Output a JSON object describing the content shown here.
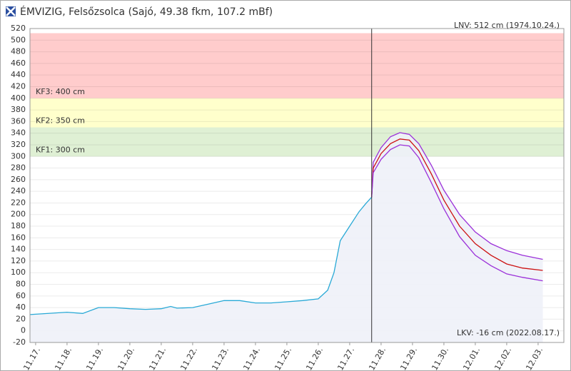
{
  "chart_data": {
    "type": "line",
    "title": "ÉMVIZIG, Felsőzsolca (Sajó, 49.38 fkm, 107.2 mBf)",
    "annotations": {
      "top_right": "LNV: 512 cm (1974.10.24.)",
      "bottom_right": "LKV: -16 cm (2022.08.17.)"
    },
    "bands": [
      {
        "from": 400,
        "to": 512,
        "label": "KF3: 400 cm",
        "color": "#ffcccc"
      },
      {
        "from": 350,
        "to": 400,
        "label": "KF2: 350 cm",
        "color": "#ffffcc"
      },
      {
        "from": 300,
        "to": 350,
        "label": "KF1: 300 cm",
        "color": "#dff0d4"
      }
    ],
    "now_x": 10.7,
    "xlim": [
      -0.18,
      16.82
    ],
    "xticks": [
      {
        "value": 0,
        "label": "11.17."
      },
      {
        "value": 1,
        "label": "11.18."
      },
      {
        "value": 2,
        "label": "11.19."
      },
      {
        "value": 3,
        "label": "11.20."
      },
      {
        "value": 4,
        "label": "11.21."
      },
      {
        "value": 5,
        "label": "11.22."
      },
      {
        "value": 6,
        "label": "11.23."
      },
      {
        "value": 7,
        "label": "11.24."
      },
      {
        "value": 8,
        "label": "11.25."
      },
      {
        "value": 9,
        "label": "11.26."
      },
      {
        "value": 10,
        "label": "11.27."
      },
      {
        "value": 11,
        "label": "11.28."
      },
      {
        "value": 12,
        "label": "11.29."
      },
      {
        "value": 13,
        "label": "11.30."
      },
      {
        "value": 14,
        "label": "12.01."
      },
      {
        "value": 15,
        "label": "12.02."
      },
      {
        "value": 16,
        "label": "12.03."
      }
    ],
    "ylim": [
      -20,
      520
    ],
    "yticks": [
      -20,
      0,
      20,
      40,
      60,
      80,
      100,
      120,
      140,
      160,
      180,
      200,
      220,
      240,
      260,
      280,
      300,
      320,
      340,
      360,
      380,
      400,
      420,
      440,
      460,
      480,
      500,
      520
    ],
    "grid": true,
    "series": [
      {
        "color": "#29a9d6",
        "fill": "#eef1f8",
        "x": [
          -0.18,
          1,
          1.5,
          2,
          2.5,
          3,
          3.5,
          4,
          4.3,
          4.5,
          5,
          5.5,
          6,
          6.5,
          7,
          7.5,
          8,
          8.5,
          9,
          9.3,
          9.5,
          9.7,
          10,
          10.3,
          10.5,
          10.7
        ],
        "values": [
          28,
          32,
          30,
          40,
          40,
          38,
          37,
          38,
          42,
          39,
          40,
          46,
          52,
          52,
          48,
          48,
          50,
          52,
          55,
          70,
          100,
          155,
          180,
          205,
          218,
          230
        ]
      },
      {
        "color": "#9b30d9",
        "fill": "#eef1f8",
        "x": [
          10.7,
          10.75,
          11,
          11.3,
          11.6,
          11.9,
          12.2,
          12.6,
          13,
          13.5,
          14,
          14.5,
          15,
          15.5,
          16.15
        ],
        "values": [
          230,
          290,
          315,
          334,
          341,
          338,
          322,
          285,
          242,
          200,
          170,
          150,
          138,
          130,
          123
        ]
      },
      {
        "color": "#cc1111",
        "x": [
          10.7,
          10.75,
          11,
          11.3,
          11.6,
          11.9,
          12.2,
          12.6,
          13,
          13.5,
          14,
          14.5,
          15,
          15.5,
          16.15
        ],
        "values": [
          230,
          280,
          305,
          322,
          330,
          328,
          310,
          270,
          225,
          180,
          150,
          130,
          115,
          108,
          104
        ]
      },
      {
        "color": "#9b30d9",
        "x": [
          10.7,
          10.75,
          11,
          11.3,
          11.6,
          11.9,
          12.2,
          12.6,
          13,
          13.5,
          14,
          14.5,
          15,
          15.5,
          16.15
        ],
        "values": [
          230,
          272,
          295,
          312,
          320,
          318,
          298,
          255,
          210,
          162,
          130,
          112,
          98,
          92,
          86
        ]
      }
    ]
  }
}
